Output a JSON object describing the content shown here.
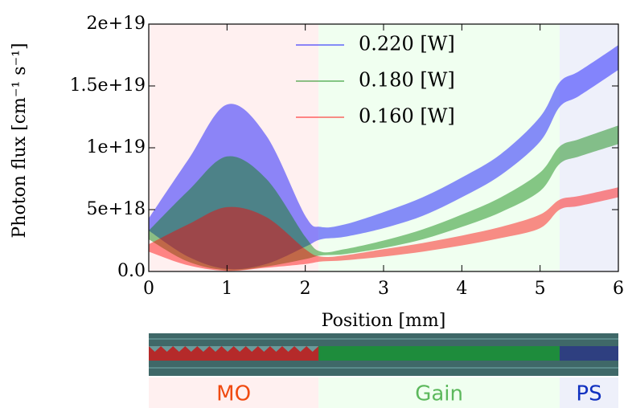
{
  "chart_data": {
    "type": "band",
    "x_label": "Position [mm]",
    "y_label": "Photon flux [cm⁻¹ s⁻¹]",
    "x": [
      0,
      0.5,
      1,
      1.5,
      2,
      2.2,
      2.5,
      3,
      3.5,
      4,
      4.5,
      5,
      5.25,
      5.5,
      6
    ],
    "series": [
      {
        "name": "0.220 [W]",
        "color": "#0000ff",
        "values": [
          4.3e+18,
          9e+18,
          1.35e+19,
          1.1e+19,
          4.5e+18,
          3.6e+18,
          3.8e+18,
          4.8e+18,
          6e+18,
          7.6e+18,
          9.5e+18,
          1.25e+19,
          1.53e+19,
          1.62e+19,
          1.83e+19
        ],
        "lower": [
          3.3e+18,
          1.2e+18,
          2e+17,
          6e+17,
          2e+18,
          2.6e+18,
          2.8e+18,
          3.5e+18,
          4.5e+18,
          6e+18,
          7.8e+18,
          1.05e+19,
          1.33e+19,
          1.42e+19,
          1.63e+19
        ]
      },
      {
        "name": "0.180 [W]",
        "color": "#008000",
        "values": [
          3.3e+18,
          6.5e+18,
          9.3e+18,
          7.5e+18,
          2.8e+18,
          1.6e+18,
          1.8e+18,
          2.5e+18,
          3.4e+18,
          4.6e+18,
          6e+18,
          8e+18,
          1.01e+19,
          1.07e+19,
          1.18e+19
        ],
        "lower": [
          2.6e+18,
          8e+17,
          1e+17,
          4e+17,
          1e+18,
          1.3e+18,
          1.4e+18,
          1.9e+18,
          2.6e+18,
          3.6e+18,
          4.8e+18,
          6.5e+18,
          8.7e+18,
          9.3e+18,
          1.03e+19
        ]
      },
      {
        "name": "0.160 [W]",
        "color": "#ff0000",
        "values": [
          2.2e+18,
          3.8e+18,
          5.2e+18,
          4.4e+18,
          1.8e+18,
          1.2e+18,
          1.3e+18,
          1.8e+18,
          2.3e+18,
          2.9e+18,
          3.6e+18,
          4.6e+18,
          5.8e+18,
          6.1e+18,
          6.8e+18
        ],
        "lower": [
          1.6e+18,
          5e+17,
          5e+16,
          3e+17,
          6e+17,
          8e+17,
          9e+17,
          1.2e+18,
          1.6e+18,
          2.1e+18,
          2.7e+18,
          3.5e+18,
          5e+18,
          5.3e+18,
          6e+18
        ]
      }
    ],
    "regions": [
      {
        "name": "MO",
        "from": 0,
        "to": 2.17,
        "color": "#fff0f0",
        "label_color": "#f04a10",
        "strip_color": "#b52a2a"
      },
      {
        "name": "Gain",
        "from": 2.17,
        "to": 5.25,
        "color": "#f0fff0",
        "label_color": "#5cb85c",
        "strip_color": "#1e8c3c"
      },
      {
        "name": "PS",
        "from": 5.25,
        "to": 6,
        "color": "#eef0fa",
        "label_color": "#1030c0",
        "strip_color": "#2e3f80"
      }
    ],
    "xlim": [
      0,
      6
    ],
    "ylim": [
      0,
      2e+19
    ],
    "xticks": [
      0,
      1,
      2,
      3,
      4,
      5,
      6
    ],
    "yticks": [
      {
        "value": 0,
        "label": "0.0"
      },
      {
        "value": 5e+18,
        "label": "5e+18"
      },
      {
        "value": 1e+19,
        "label": "1e+19"
      },
      {
        "value": 1.5e+19,
        "label": "1.5e+19"
      },
      {
        "value": 2e+19,
        "label": "2e+19"
      }
    ],
    "legend": "upper center"
  }
}
